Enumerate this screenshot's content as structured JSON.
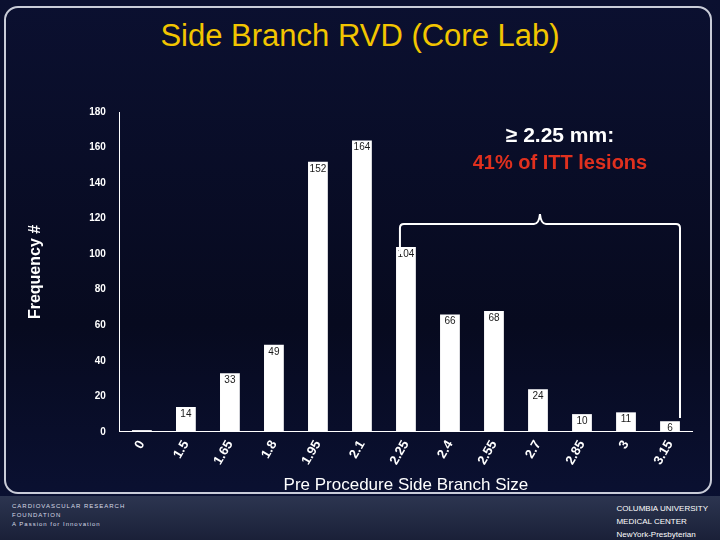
{
  "chart_data": {
    "type": "bar",
    "title": "Side Branch RVD (Core Lab)",
    "y_label": "Frequency #",
    "x_label": "Pre Procedure Side Branch Size",
    "categories": [
      "0",
      "1.5",
      "1.65",
      "1.8",
      "1.95",
      "2.1",
      "2.25",
      "2.4",
      "2.55",
      "2.7",
      "2.85",
      "3",
      "3.15"
    ],
    "values": [
      1,
      14,
      33,
      49,
      152,
      164,
      104,
      66,
      68,
      24,
      10,
      11,
      6
    ],
    "value_labels": [
      null,
      "14",
      "33",
      "49",
      "152",
      "164",
      "104",
      "66",
      "68",
      "24",
      "10",
      "11",
      "6"
    ],
    "color": "#ffffff",
    "ylim": [
      0,
      180
    ],
    "yticks": [
      0,
      20,
      40,
      60,
      80,
      100,
      120,
      140,
      160,
      180
    ],
    "grid": false,
    "data_labels": true,
    "annotation": [
      "≥ 2.25 mm:",
      "41% of ITT lesions"
    ]
  },
  "footer": {
    "left": [
      "CARDIOVASCULAR RESEARCH",
      "FOUNDATION",
      "A Passion for Innovation"
    ],
    "right": [
      "COLUMBIA UNIVERSITY",
      "MEDICAL CENTER",
      "NewYork-Presbyterian"
    ]
  }
}
